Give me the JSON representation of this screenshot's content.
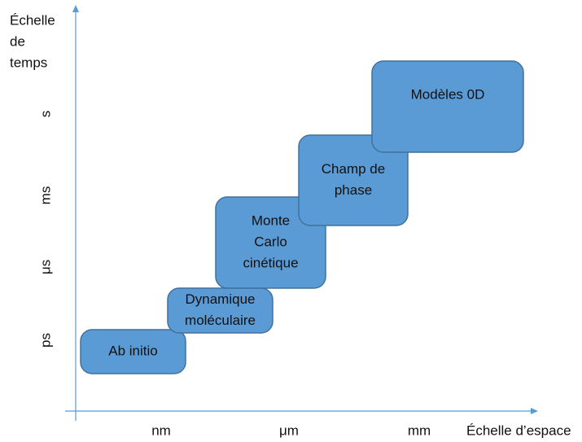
{
  "y_axis": {
    "label_lines": [
      "Échelle",
      "de",
      "temps"
    ],
    "ticks": [
      "s",
      "ms",
      "μs",
      "ps"
    ]
  },
  "x_axis": {
    "label": "Échelle d’espace",
    "ticks": [
      "nm",
      "μm",
      "mm"
    ]
  },
  "nodes": [
    {
      "lines": [
        "Ab initio"
      ]
    },
    {
      "lines": [
        "Dynamique",
        "moléculaire"
      ]
    },
    {
      "lines": [
        "Monte",
        "Carlo",
        "cinétique"
      ]
    },
    {
      "lines": [
        "Champ de",
        "phase"
      ]
    },
    {
      "lines": [
        "Modèles 0D"
      ]
    }
  ]
}
